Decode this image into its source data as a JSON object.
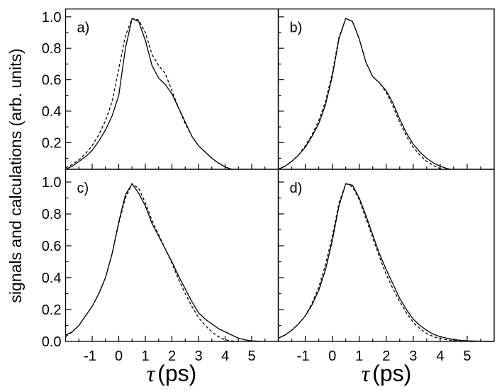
{
  "chart_data": {
    "type": "line",
    "ylabel": "signals and calculations (arb. units)",
    "xlabel_symbol": "τ",
    "xlabel_unit": "(ps)",
    "xlim": [
      -2,
      6
    ],
    "x_ticks": [
      "-1",
      "0",
      "1",
      "2",
      "3",
      "4",
      "5"
    ],
    "x": [
      -2,
      -1.75,
      -1.5,
      -1.25,
      -1,
      -0.75,
      -0.5,
      -0.25,
      0,
      0.25,
      0.5,
      0.75,
      1,
      1.25,
      1.5,
      1.75,
      2,
      2.25,
      2.5,
      2.75,
      3,
      3.25,
      3.5,
      3.75,
      4,
      4.25,
      4.5,
      4.75,
      5,
      5.5,
      6
    ],
    "grid": false,
    "panels": [
      {
        "label": "a)",
        "ylim": [
          0.03,
          1.05
        ],
        "y_ticks": [
          "0.2",
          "0.4",
          "0.6",
          "0.8",
          "1.0"
        ],
        "series": [
          {
            "style": "solid",
            "values": [
              0.03,
              0.05,
              0.08,
              0.11,
              0.15,
              0.21,
              0.28,
              0.37,
              0.5,
              0.8,
              0.99,
              0.97,
              0.85,
              0.69,
              0.61,
              0.57,
              0.51,
              0.42,
              0.33,
              0.24,
              0.18,
              0.14,
              0.1,
              0.07,
              0.045,
              0.03,
              0.02,
              0.012,
              0.007,
              0.003,
              0.001
            ]
          },
          {
            "style": "dashed",
            "values": [
              0.04,
              0.06,
              0.09,
              0.13,
              0.18,
              0.25,
              0.34,
              0.46,
              0.67,
              0.88,
              0.99,
              0.98,
              0.9,
              0.76,
              0.69,
              0.64,
              0.53,
              0.42,
              0.32,
              0.24,
              0.18,
              0.14,
              0.1,
              0.07,
              0.045,
              0.03,
              0.02,
              0.012,
              0.007,
              0.003,
              0.001
            ]
          }
        ]
      },
      {
        "label": "b)",
        "ylim": [
          0.03,
          1.05
        ],
        "y_ticks": [],
        "series": [
          {
            "style": "solid",
            "values": [
              0.03,
              0.05,
              0.08,
              0.12,
              0.17,
              0.24,
              0.32,
              0.44,
              0.62,
              0.86,
              0.99,
              0.97,
              0.86,
              0.71,
              0.62,
              0.58,
              0.53,
              0.45,
              0.35,
              0.26,
              0.19,
              0.14,
              0.1,
              0.07,
              0.05,
              0.035,
              0.025,
              0.015,
              0.01,
              0.005,
              0.003
            ]
          },
          {
            "style": "dashed",
            "values": [
              0.03,
              0.05,
              0.08,
              0.12,
              0.18,
              0.25,
              0.34,
              0.46,
              0.64,
              0.87,
              0.99,
              0.97,
              0.86,
              0.71,
              0.62,
              0.58,
              0.52,
              0.43,
              0.33,
              0.24,
              0.17,
              0.12,
              0.08,
              0.055,
              0.035,
              0.022,
              0.014,
              0.008,
              0.005,
              0.002,
              0.001
            ]
          }
        ]
      },
      {
        "label": "c)",
        "ylim": [
          0,
          1.08
        ],
        "y_ticks": [
          "0.0",
          "0.2",
          "0.4",
          "0.6",
          "0.8",
          "1.0"
        ],
        "series": [
          {
            "style": "solid",
            "values": [
              0.04,
              0.06,
              0.1,
              0.16,
              0.22,
              0.3,
              0.4,
              0.55,
              0.75,
              0.92,
              0.99,
              0.93,
              0.85,
              0.74,
              0.66,
              0.58,
              0.5,
              0.41,
              0.33,
              0.25,
              0.18,
              0.14,
              0.11,
              0.08,
              0.06,
              0.04,
              0.02,
              0.01,
              0.003,
              0,
              0
            ]
          },
          {
            "style": "dashed",
            "values": [
              0.03,
              0.06,
              0.1,
              0.16,
              0.22,
              0.3,
              0.4,
              0.55,
              0.74,
              0.9,
              0.99,
              0.96,
              0.87,
              0.76,
              0.67,
              0.58,
              0.49,
              0.39,
              0.3,
              0.22,
              0.15,
              0.1,
              0.06,
              0.03,
              0.01,
              0.003,
              0.001,
              0,
              0,
              0,
              0
            ]
          }
        ]
      },
      {
        "label": "d)",
        "ylim": [
          0,
          1.08
        ],
        "y_ticks": [],
        "series": [
          {
            "style": "solid",
            "values": [
              0.02,
              0.04,
              0.07,
              0.11,
              0.16,
              0.23,
              0.32,
              0.45,
              0.63,
              0.85,
              0.99,
              0.98,
              0.9,
              0.79,
              0.67,
              0.55,
              0.45,
              0.36,
              0.27,
              0.2,
              0.14,
              0.1,
              0.07,
              0.045,
              0.03,
              0.02,
              0.012,
              0.007,
              0.004,
              0.002,
              0.001
            ]
          },
          {
            "style": "dashed",
            "values": [
              0.02,
              0.04,
              0.07,
              0.11,
              0.16,
              0.24,
              0.34,
              0.48,
              0.66,
              0.87,
              0.99,
              0.97,
              0.89,
              0.77,
              0.65,
              0.53,
              0.42,
              0.33,
              0.25,
              0.18,
              0.12,
              0.08,
              0.05,
              0.03,
              0.018,
              0.01,
              0.006,
              0.003,
              0.002,
              0.001,
              0
            ]
          }
        ]
      }
    ]
  }
}
